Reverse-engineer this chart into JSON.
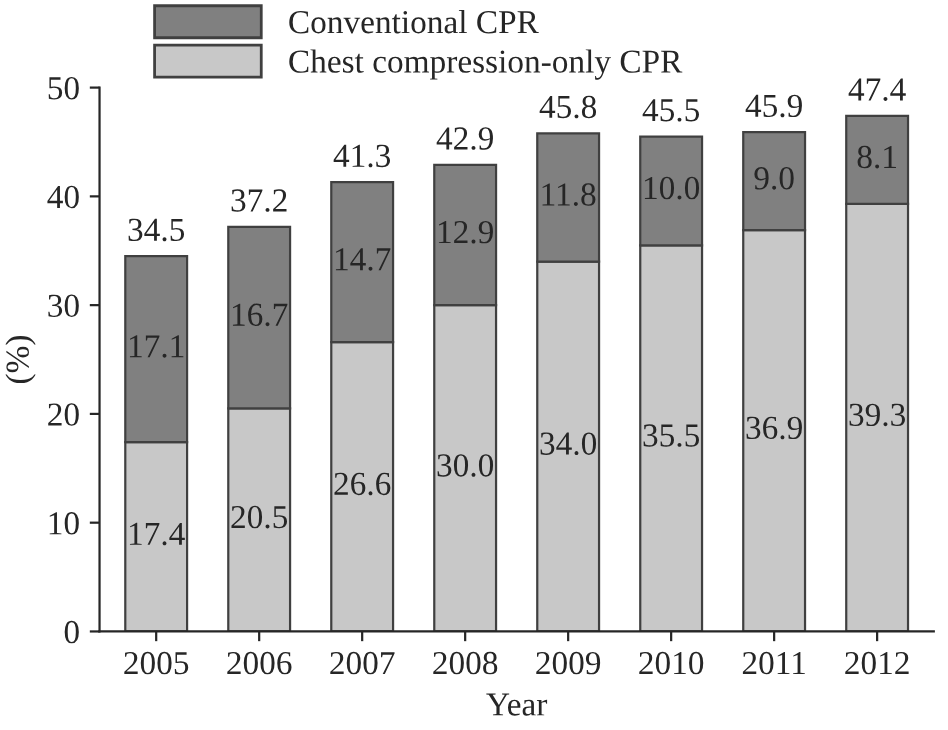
{
  "chart_data": {
    "type": "bar",
    "stacked": true,
    "xlabel": "Year",
    "ylabel": "(%)",
    "categories": [
      "2005",
      "2006",
      "2007",
      "2008",
      "2009",
      "2010",
      "2011",
      "2012"
    ],
    "series": [
      {
        "name": "Chest compression-only CPR",
        "color": "#c8c8c8",
        "values": [
          17.4,
          20.5,
          26.6,
          30.0,
          34.0,
          35.5,
          36.9,
          39.3
        ],
        "value_labels": [
          "17.4",
          "20.5",
          "26.6",
          "30.0",
          "34.0",
          "35.5",
          "36.9",
          "39.3"
        ]
      },
      {
        "name": "Conventional CPR",
        "color": "#808080",
        "values": [
          17.1,
          16.7,
          14.7,
          12.9,
          11.8,
          10.0,
          9.0,
          8.1
        ],
        "value_labels": [
          "17.1",
          "16.7",
          "14.7",
          "12.9",
          "11.8",
          "10.0",
          "9.0",
          "8.1"
        ]
      }
    ],
    "totals": [
      "34.5",
      "37.2",
      "41.3",
      "42.9",
      "45.8",
      "45.5",
      "45.9",
      "47.4"
    ],
    "ylim": [
      0,
      50
    ],
    "yticks": [
      0,
      10,
      20,
      30,
      40,
      50
    ],
    "grid": false,
    "legend": "top"
  }
}
